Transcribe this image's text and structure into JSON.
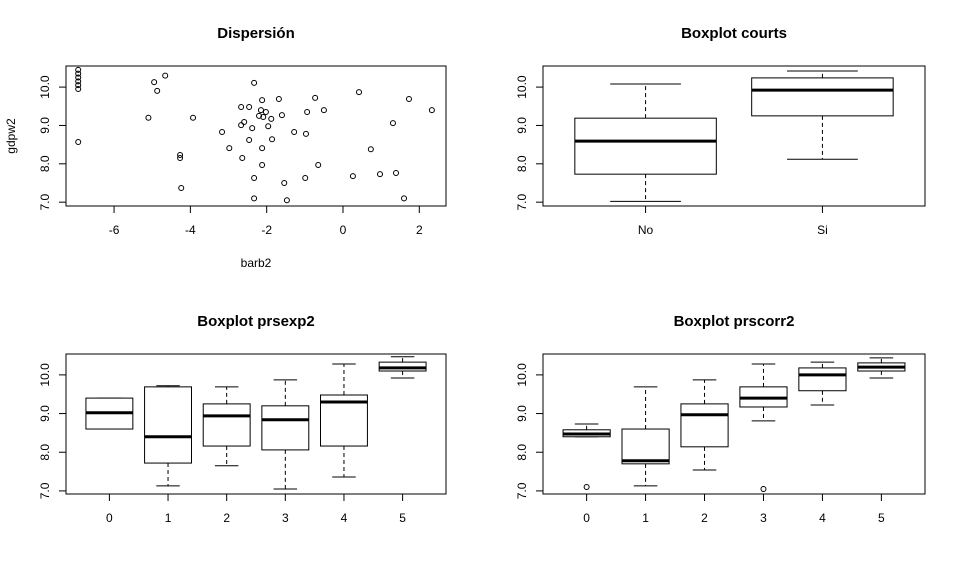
{
  "chart_data": [
    {
      "type": "scatter",
      "title": "Dispersión",
      "xlabel": "barb2",
      "ylabel": "gdpw2",
      "x": [
        -6.94,
        -6.94,
        -6.94,
        -6.94,
        -6.94,
        -6.94,
        -6.94,
        -4.95,
        -4.87,
        -4.66,
        -5.1,
        -3.93,
        -4.27,
        -4.27,
        -4.24,
        -3.17,
        -2.98,
        -2.67,
        -2.46,
        -2.67,
        -2.59,
        -2.64,
        -2.46,
        -2.38,
        -2.33,
        -2.33,
        -2.33,
        -2.2,
        -2.15,
        -2.12,
        -2.09,
        -2.12,
        -2.12,
        -2.02,
        -1.96,
        -1.88,
        -1.86,
        -1.68,
        -1.6,
        -1.54,
        -1.47,
        -1.28,
        -0.99,
        -0.97,
        -0.94,
        -0.73,
        -0.65,
        -0.5,
        0.26,
        0.42,
        0.73,
        0.97,
        1.31,
        1.39,
        1.6,
        1.73,
        2.33
      ],
      "y": [
        10.45,
        10.35,
        10.25,
        10.15,
        10.05,
        9.95,
        8.57,
        10.13,
        9.9,
        10.3,
        9.2,
        9.2,
        8.23,
        8.15,
        7.37,
        8.83,
        8.41,
        9.48,
        9.48,
        9.01,
        9.09,
        8.15,
        8.62,
        8.93,
        10.11,
        7.63,
        7.1,
        9.25,
        9.4,
        9.66,
        9.22,
        8.41,
        7.97,
        9.35,
        8.98,
        9.17,
        8.64,
        9.69,
        9.27,
        7.5,
        7.05,
        8.83,
        7.63,
        8.78,
        9.35,
        9.72,
        7.97,
        9.4,
        7.68,
        9.87,
        8.38,
        7.73,
        9.06,
        7.76,
        7.1,
        9.69,
        9.4
      ],
      "xlim": [
        -7.26,
        2.7
      ],
      "xticks": [
        -6,
        -4,
        -2,
        0,
        2
      ],
      "ylim": [
        6.9,
        10.55
      ],
      "yticks": [
        {
          "value": 7,
          "label": "7.0"
        },
        {
          "value": 8,
          "label": "8.0"
        },
        {
          "value": 9,
          "label": "9.0"
        },
        {
          "value": 10,
          "label": "10.0"
        }
      ]
    },
    {
      "type": "boxplot",
      "title": "Boxplot courts",
      "categories": [
        "No",
        "Si"
      ],
      "boxes": [
        {
          "whisker_low": 7.02,
          "q1": 7.73,
          "median": 8.59,
          "q3": 9.19,
          "whisker_high": 10.08
        },
        {
          "whisker_low": 8.12,
          "q1": 9.25,
          "median": 9.92,
          "q3": 10.24,
          "whisker_high": 10.42
        }
      ],
      "ylim": [
        6.9,
        10.55
      ],
      "yticks": [
        {
          "value": 7,
          "label": "7.0"
        },
        {
          "value": 8,
          "label": "8.0"
        },
        {
          "value": 9,
          "label": "9.0"
        },
        {
          "value": 10,
          "label": "10.0"
        }
      ]
    },
    {
      "type": "boxplot",
      "title": "Boxplot prsexp2",
      "categories": [
        "0",
        "1",
        "2",
        "3",
        "4",
        "5"
      ],
      "boxes": [
        {
          "whisker_low": 8.6,
          "q1": 8.6,
          "median": 9.02,
          "q3": 9.4,
          "whisker_high": 9.4
        },
        {
          "whisker_low": 7.13,
          "q1": 7.72,
          "median": 8.4,
          "q3": 9.69,
          "whisker_high": 9.72
        },
        {
          "whisker_low": 7.65,
          "q1": 8.16,
          "median": 8.94,
          "q3": 9.25,
          "whisker_high": 9.69
        },
        {
          "whisker_low": 7.05,
          "q1": 8.06,
          "median": 8.84,
          "q3": 9.2,
          "whisker_high": 9.87
        },
        {
          "whisker_low": 7.36,
          "q1": 8.16,
          "median": 9.3,
          "q3": 9.48,
          "whisker_high": 10.28
        },
        {
          "whisker_low": 9.92,
          "q1": 10.1,
          "median": 10.18,
          "q3": 10.33,
          "whisker_high": 10.47
        }
      ],
      "ylim": [
        6.92,
        10.54
      ],
      "yticks": [
        {
          "value": 7,
          "label": "7.0"
        },
        {
          "value": 8,
          "label": "8.0"
        },
        {
          "value": 9,
          "label": "9.0"
        },
        {
          "value": 10,
          "label": "10.0"
        }
      ]
    },
    {
      "type": "boxplot",
      "title": "Boxplot prscorr2",
      "categories": [
        "0",
        "1",
        "2",
        "3",
        "4",
        "5"
      ],
      "boxes": [
        {
          "whisker_low": 8.4,
          "q1": 8.4,
          "median": 8.47,
          "q3": 8.58,
          "whisker_high": 8.73,
          "outliers": [
            7.1
          ]
        },
        {
          "whisker_low": 7.13,
          "q1": 7.7,
          "median": 7.78,
          "q3": 8.6,
          "whisker_high": 9.69
        },
        {
          "whisker_low": 7.54,
          "q1": 8.14,
          "median": 8.97,
          "q3": 9.25,
          "whisker_high": 9.87
        },
        {
          "whisker_low": 8.81,
          "q1": 9.17,
          "median": 9.4,
          "q3": 9.69,
          "whisker_high": 10.28,
          "outliers": [
            7.05
          ]
        },
        {
          "whisker_low": 9.22,
          "q1": 9.59,
          "median": 10.0,
          "q3": 10.18,
          "whisker_high": 10.33
        },
        {
          "whisker_low": 9.92,
          "q1": 10.1,
          "median": 10.2,
          "q3": 10.31,
          "whisker_high": 10.44
        }
      ],
      "ylim": [
        6.92,
        10.54
      ],
      "yticks": [
        {
          "value": 7,
          "label": "7.0"
        },
        {
          "value": 8,
          "label": "8.0"
        },
        {
          "value": 9,
          "label": "9.0"
        },
        {
          "value": 10,
          "label": "10.0"
        }
      ]
    }
  ]
}
